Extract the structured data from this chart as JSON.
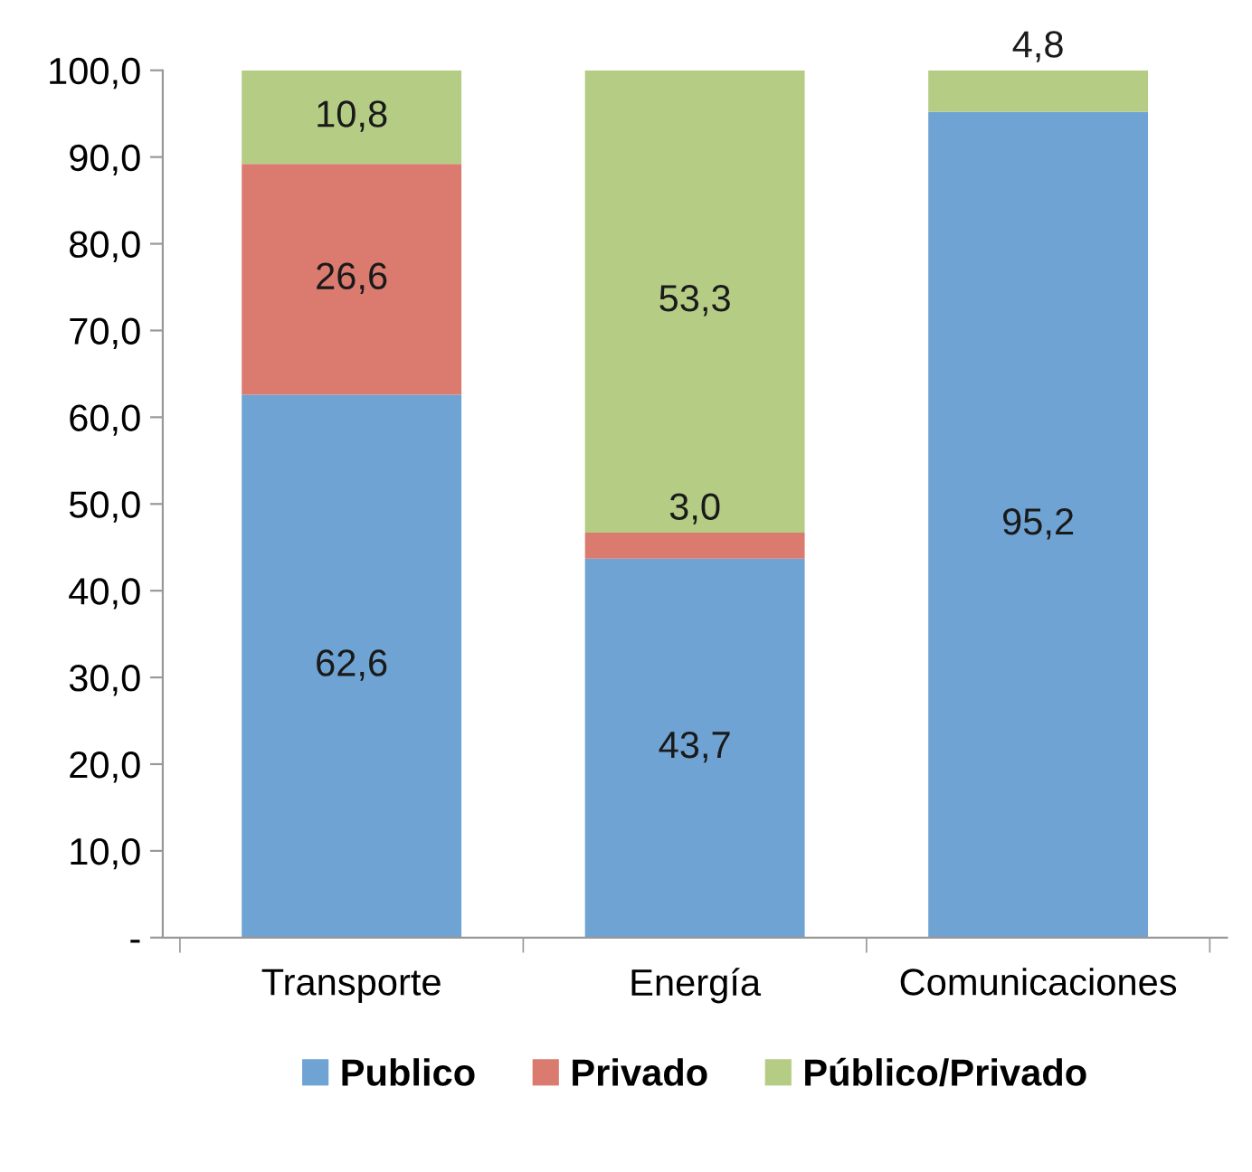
{
  "chart_data": {
    "type": "bar",
    "stacked": true,
    "categories": [
      "Transporte",
      "Energía",
      "Comunicaciones"
    ],
    "series": [
      {
        "name": "Publico",
        "color": "#6fa3d3",
        "values": [
          62.6,
          43.7,
          95.2
        ],
        "value_labels": [
          "62,6",
          "43,7",
          "95,2"
        ]
      },
      {
        "name": "Privado",
        "color": "#db7b70",
        "values": [
          26.6,
          3.0,
          null
        ],
        "value_labels": [
          "26,6",
          "3,0",
          null
        ]
      },
      {
        "name": "Público/Privado",
        "color": "#b5cc85",
        "values": [
          10.8,
          53.3,
          4.8
        ],
        "value_labels": [
          "10,8",
          "53,3",
          "4,8"
        ]
      }
    ],
    "ylim": [
      0,
      100
    ],
    "yticks": [
      {
        "value": 0,
        "label": "-"
      },
      {
        "value": 10,
        "label": "10,0"
      },
      {
        "value": 20,
        "label": "20,0"
      },
      {
        "value": 30,
        "label": "30,0"
      },
      {
        "value": 40,
        "label": "40,0"
      },
      {
        "value": 50,
        "label": "50,0"
      },
      {
        "value": 60,
        "label": "60,0"
      },
      {
        "value": 70,
        "label": "70,0"
      },
      {
        "value": 80,
        "label": "80,0"
      },
      {
        "value": 90,
        "label": "90,0"
      },
      {
        "value": 100,
        "label": "100,0"
      }
    ],
    "grid": false,
    "legend": "bottom"
  }
}
